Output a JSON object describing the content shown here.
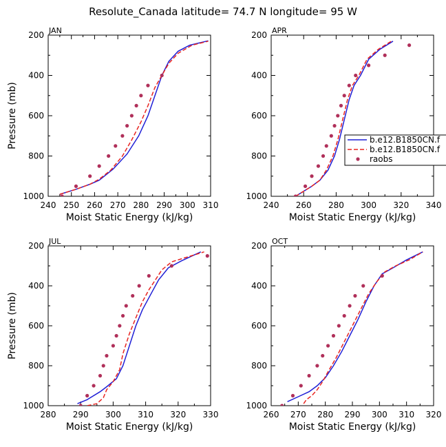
{
  "figure_title": "Resolute_Canada  latitude= 74.7 N longitude= 95 W",
  "colors": {
    "model_1": "#1f1fd6",
    "model_2": "#e8231f",
    "raobs": "#b0305a"
  },
  "legend": {
    "placement": "right-middle (inside APR panel, clipped at figure edge)",
    "entries": [
      "b.e12.B1850CN.f",
      "b.e12.B1850CN.f",
      "raobs"
    ]
  },
  "chart_data": [
    {
      "type": "line",
      "panel": "JAN",
      "xlabel": "Moist Static Energy (kJ/kg)",
      "ylabel": "Pressure (mb)",
      "xlim": [
        240,
        310
      ],
      "ylim": [
        1000,
        200
      ],
      "xticks": [
        240,
        250,
        260,
        270,
        280,
        290,
        300,
        310
      ],
      "yticks": [
        200,
        400,
        600,
        800,
        1000
      ],
      "y_inverted": true,
      "series": [
        {
          "style": "solid",
          "points": [
            [
              245,
              990
            ],
            [
              252,
              965
            ],
            [
              258,
              940
            ],
            [
              262,
              920
            ],
            [
              268,
              865
            ],
            [
              274,
              790
            ],
            [
              279,
              700
            ],
            [
              283,
              600
            ],
            [
              286,
              500
            ],
            [
              289,
              400
            ],
            [
              292,
              330
            ],
            [
              296,
              280
            ],
            [
              301,
              250
            ],
            [
              309,
              228
            ]
          ]
        },
        {
          "style": "dashed",
          "points": [
            [
              245,
              990
            ],
            [
              252,
              965
            ],
            [
              258,
              940
            ],
            [
              262,
              915
            ],
            [
              267,
              870
            ],
            [
              272,
              800
            ],
            [
              276,
              720
            ],
            [
              280,
              630
            ],
            [
              283,
              550
            ],
            [
              286,
              460
            ],
            [
              289,
              400
            ],
            [
              292,
              340
            ],
            [
              296,
              290
            ],
            [
              302,
              250
            ],
            [
              309,
              230
            ]
          ]
        },
        {
          "style": "dots",
          "points": [
            [
              246,
              1000
            ],
            [
              252,
              950
            ],
            [
              258,
              900
            ],
            [
              262,
              850
            ],
            [
              266,
              800
            ],
            [
              269,
              750
            ],
            [
              272,
              700
            ],
            [
              274,
              650
            ],
            [
              276,
              600
            ],
            [
              278,
              550
            ],
            [
              280,
              500
            ],
            [
              283,
              450
            ],
            [
              289,
              400
            ]
          ]
        }
      ]
    },
    {
      "type": "line",
      "panel": "APR",
      "xlabel": "Moist Static Energy (kJ/kg)",
      "ylabel": "",
      "xlim": [
        240,
        340
      ],
      "ylim": [
        1000,
        200
      ],
      "xticks": [
        240,
        260,
        280,
        300,
        320,
        340
      ],
      "yticks": [
        200,
        400,
        600,
        800,
        1000
      ],
      "y_inverted": true,
      "series": [
        {
          "style": "solid",
          "points": [
            [
              255,
              1000
            ],
            [
              260,
              975
            ],
            [
              265,
              950
            ],
            [
              270,
              920
            ],
            [
              275,
              870
            ],
            [
              279,
              800
            ],
            [
              282,
              720
            ],
            [
              285,
              620
            ],
            [
              288,
              520
            ],
            [
              291,
              450
            ],
            [
              295,
              400
            ],
            [
              300,
              320
            ],
            [
              307,
              270
            ],
            [
              315,
              230
            ]
          ]
        },
        {
          "style": "dashed",
          "points": [
            [
              255,
              1000
            ],
            [
              260,
              975
            ],
            [
              265,
              950
            ],
            [
              270,
              920
            ],
            [
              274,
              870
            ],
            [
              278,
              800
            ],
            [
              281,
              720
            ],
            [
              284,
              620
            ],
            [
              287,
              520
            ],
            [
              290,
              450
            ],
            [
              294,
              400
            ],
            [
              299,
              320
            ],
            [
              306,
              270
            ],
            [
              314,
              230
            ]
          ]
        },
        {
          "style": "dots",
          "points": [
            [
              255,
              1000
            ],
            [
              261,
              950
            ],
            [
              265,
              900
            ],
            [
              269,
              850
            ],
            [
              272,
              800
            ],
            [
              274,
              750
            ],
            [
              277,
              700
            ],
            [
              279,
              650
            ],
            [
              281,
              600
            ],
            [
              283,
              550
            ],
            [
              285,
              500
            ],
            [
              288,
              450
            ],
            [
              292,
              400
            ],
            [
              300,
              350
            ],
            [
              310,
              300
            ],
            [
              325,
              250
            ]
          ]
        }
      ]
    },
    {
      "type": "line",
      "panel": "JUL",
      "xlabel": "Moist Static Energy (kJ/kg)",
      "ylabel": "Pressure (mb)",
      "xlim": [
        280,
        330
      ],
      "ylim": [
        1000,
        200
      ],
      "xticks": [
        280,
        290,
        300,
        310,
        320,
        330
      ],
      "yticks": [
        200,
        400,
        600,
        800,
        1000
      ],
      "y_inverted": true,
      "series": [
        {
          "style": "solid",
          "points": [
            [
              289,
              990
            ],
            [
              292,
              970
            ],
            [
              296,
              930
            ],
            [
              298,
              905
            ],
            [
              301,
              865
            ],
            [
              303,
              800
            ],
            [
              305,
              700
            ],
            [
              307,
              600
            ],
            [
              309,
              520
            ],
            [
              312,
              430
            ],
            [
              314,
              370
            ],
            [
              317,
              310
            ],
            [
              321,
              275
            ],
            [
              327,
              230
            ]
          ]
        },
        {
          "style": "dashed",
          "points": [
            [
              292,
              1000
            ],
            [
              295,
              990
            ],
            [
              297,
              960
            ],
            [
              298,
              920
            ],
            [
              300,
              880
            ],
            [
              302,
              820
            ],
            [
              303,
              740
            ],
            [
              305,
              640
            ],
            [
              307,
              560
            ],
            [
              309,
              480
            ],
            [
              311,
              420
            ],
            [
              313,
              370
            ],
            [
              315,
              320
            ],
            [
              318,
              280
            ],
            [
              323,
              255
            ],
            [
              328,
              230
            ]
          ]
        },
        {
          "style": "dots",
          "points": [
            [
              290,
              1000
            ],
            [
              292,
              950
            ],
            [
              294,
              900
            ],
            [
              296,
              850
            ],
            [
              297,
              800
            ],
            [
              298,
              750
            ],
            [
              300,
              700
            ],
            [
              301,
              650
            ],
            [
              302,
              600
            ],
            [
              303,
              550
            ],
            [
              304,
              500
            ],
            [
              306,
              450
            ],
            [
              308,
              400
            ],
            [
              311,
              350
            ],
            [
              318,
              300
            ],
            [
              329,
              250
            ]
          ]
        }
      ]
    },
    {
      "type": "line",
      "panel": "OCT",
      "xlabel": "Moist Static Energy (kJ/kg)",
      "ylabel": "",
      "xlim": [
        260,
        320
      ],
      "ylim": [
        1000,
        200
      ],
      "xticks": [
        260,
        270,
        280,
        290,
        300,
        310,
        320
      ],
      "yticks": [
        200,
        400,
        600,
        800,
        1000
      ],
      "y_inverted": true,
      "series": [
        {
          "style": "solid",
          "points": [
            [
              266,
              980
            ],
            [
              270,
              955
            ],
            [
              274,
              930
            ],
            [
              277,
              900
            ],
            [
              280,
              860
            ],
            [
              283,
              800
            ],
            [
              286,
              730
            ],
            [
              289,
              650
            ],
            [
              292,
              570
            ],
            [
              295,
              480
            ],
            [
              298,
              400
            ],
            [
              301,
              340
            ],
            [
              305,
              310
            ],
            [
              310,
              270
            ],
            [
              316,
              230
            ]
          ]
        },
        {
          "style": "dashed",
          "points": [
            [
              272,
              990
            ],
            [
              273,
              970
            ],
            [
              275,
              950
            ],
            [
              277,
              920
            ],
            [
              279,
              880
            ],
            [
              281,
              830
            ],
            [
              284,
              760
            ],
            [
              287,
              680
            ],
            [
              290,
              600
            ],
            [
              293,
              520
            ],
            [
              296,
              440
            ],
            [
              299,
              380
            ],
            [
              302,
              330
            ],
            [
              306,
              300
            ],
            [
              311,
              270
            ],
            [
              316,
              230
            ]
          ]
        },
        {
          "style": "dots",
          "points": [
            [
              264,
              1000
            ],
            [
              268,
              950
            ],
            [
              271,
              900
            ],
            [
              274,
              850
            ],
            [
              277,
              800
            ],
            [
              279,
              750
            ],
            [
              281,
              700
            ],
            [
              283,
              650
            ],
            [
              285,
              600
            ],
            [
              287,
              550
            ],
            [
              289,
              500
            ],
            [
              291,
              450
            ],
            [
              294,
              400
            ],
            [
              301,
              350
            ]
          ]
        }
      ]
    }
  ]
}
